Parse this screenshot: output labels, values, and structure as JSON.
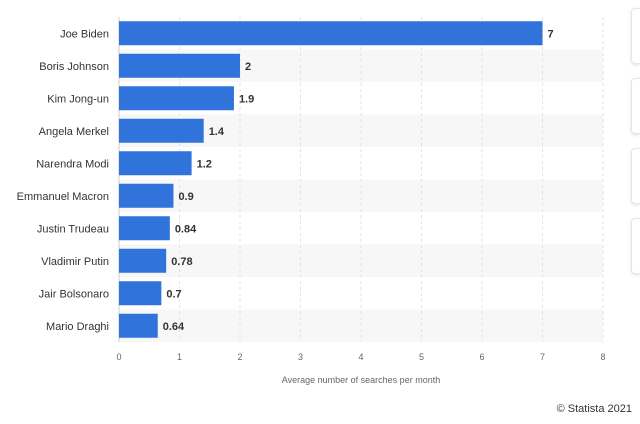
{
  "chart_data": {
    "type": "bar",
    "orientation": "horizontal",
    "categories": [
      "Joe Biden",
      "Boris Johnson",
      "Kim Jong-un",
      "Angela Merkel",
      "Narendra Modi",
      "Emmanuel Macron",
      "Justin Trudeau",
      "Vladimir Putin",
      "Jair Bolsonaro",
      "Mario Draghi"
    ],
    "values": [
      7,
      2,
      1.9,
      1.4,
      1.2,
      0.9,
      0.84,
      0.78,
      0.7,
      0.64
    ],
    "value_labels": [
      "7",
      "2",
      "1.9",
      "1.4",
      "1.2",
      "0.9",
      "0.84",
      "0.78",
      "0.7",
      "0.64"
    ],
    "xlabel": "Average number of searches per month",
    "xlim": [
      0,
      8
    ],
    "xticks": [
      "0",
      "1",
      "2",
      "3",
      "4",
      "5",
      "6",
      "7",
      "8"
    ],
    "grid": true,
    "bar_color": "#2f73db",
    "stripe_color": "#f7f7f7"
  },
  "footer": {
    "copyright": "© Statista 2021"
  }
}
